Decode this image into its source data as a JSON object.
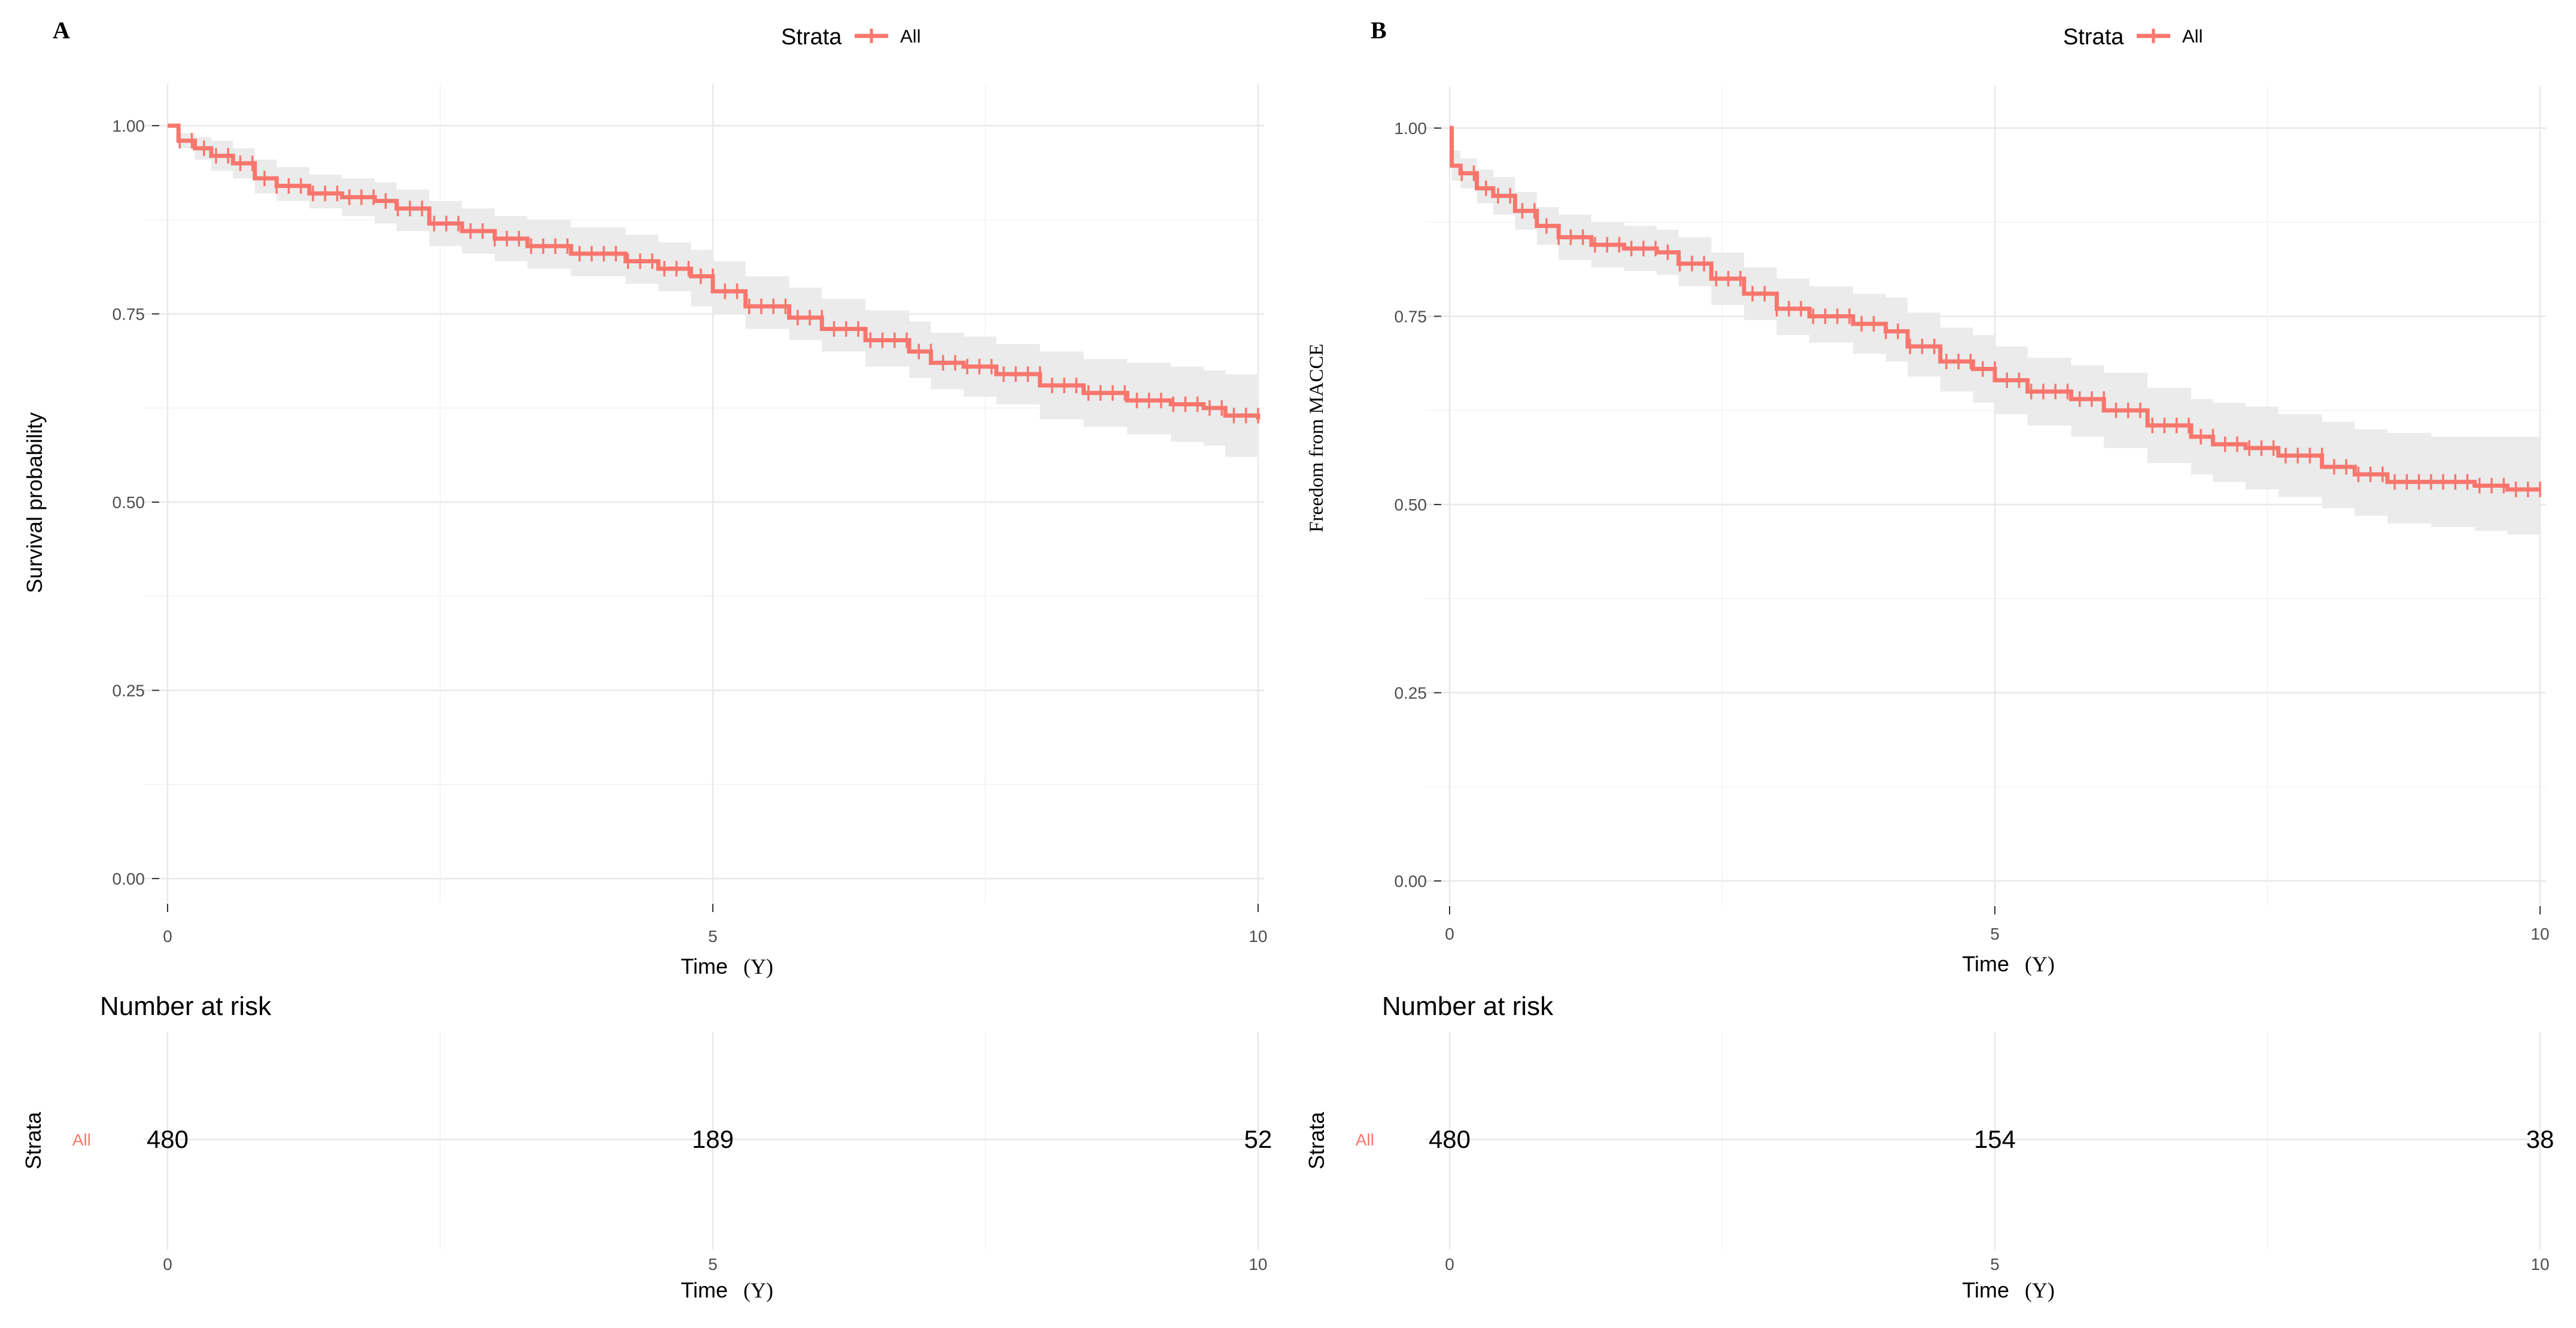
{
  "chart_data": [
    {
      "panel": "A",
      "type": "line",
      "subtype": "kaplan-meier",
      "legend": {
        "title": "Strata",
        "entries": [
          "All"
        ],
        "position": "top"
      },
      "xlabel": "Time",
      "xunit": "(Y)",
      "ylabel": "Survival probability",
      "xlim": [
        0,
        10
      ],
      "ylim": [
        0,
        1
      ],
      "xticks": [
        0,
        5,
        10
      ],
      "yticks": [
        0.0,
        0.25,
        0.5,
        0.75,
        1.0
      ],
      "ytick_labels": [
        "0.00",
        "0.25",
        "0.50",
        "0.75",
        "1.00"
      ],
      "color": "#F8766D",
      "series": [
        {
          "name": "All",
          "x": [
            0,
            0.1,
            0.25,
            0.4,
            0.6,
            0.8,
            1.0,
            1.3,
            1.6,
            1.9,
            2.1,
            2.4,
            2.7,
            3.0,
            3.3,
            3.7,
            4.0,
            4.2,
            4.5,
            4.8,
            5.0,
            5.3,
            5.7,
            6.0,
            6.4,
            6.8,
            7.0,
            7.3,
            7.6,
            8.0,
            8.4,
            8.8,
            9.2,
            9.5,
            9.7,
            10.0
          ],
          "survival": [
            1.0,
            0.98,
            0.97,
            0.96,
            0.95,
            0.93,
            0.92,
            0.91,
            0.905,
            0.9,
            0.89,
            0.87,
            0.86,
            0.85,
            0.84,
            0.83,
            0.83,
            0.82,
            0.81,
            0.8,
            0.78,
            0.76,
            0.745,
            0.73,
            0.715,
            0.7,
            0.685,
            0.68,
            0.67,
            0.655,
            0.645,
            0.635,
            0.63,
            0.625,
            0.615,
            0.61
          ],
          "lower": [
            1.0,
            0.97,
            0.955,
            0.94,
            0.93,
            0.91,
            0.9,
            0.89,
            0.88,
            0.87,
            0.86,
            0.84,
            0.83,
            0.82,
            0.81,
            0.8,
            0.8,
            0.79,
            0.78,
            0.76,
            0.75,
            0.73,
            0.715,
            0.7,
            0.68,
            0.665,
            0.65,
            0.64,
            0.63,
            0.61,
            0.6,
            0.59,
            0.58,
            0.575,
            0.56,
            0.55
          ],
          "upper": [
            1.0,
            0.99,
            0.985,
            0.98,
            0.97,
            0.955,
            0.945,
            0.935,
            0.93,
            0.925,
            0.915,
            0.9,
            0.89,
            0.88,
            0.875,
            0.865,
            0.865,
            0.855,
            0.845,
            0.835,
            0.82,
            0.8,
            0.785,
            0.77,
            0.755,
            0.74,
            0.725,
            0.72,
            0.71,
            0.7,
            0.69,
            0.685,
            0.68,
            0.675,
            0.67,
            0.67
          ]
        }
      ],
      "risk_table": {
        "title": "Number at risk",
        "ylabel": "Strata",
        "row_label": "All",
        "times": [
          0,
          5,
          10
        ],
        "counts": [
          480,
          189,
          52
        ],
        "xlabel": "Time",
        "xunit": "(Y)"
      }
    },
    {
      "panel": "B",
      "type": "line",
      "subtype": "kaplan-meier",
      "legend": {
        "title": "Strata",
        "entries": [
          "All"
        ],
        "position": "top"
      },
      "xlabel": "Time",
      "xunit": "(Y)",
      "ylabel": "Freedom from MACCE",
      "xlim": [
        0,
        10
      ],
      "ylim": [
        0,
        1
      ],
      "xticks": [
        0,
        5,
        10
      ],
      "yticks": [
        0.0,
        0.25,
        0.5,
        0.75,
        1.0
      ],
      "ytick_labels": [
        "0.00",
        "0.25",
        "0.50",
        "0.75",
        "1.00"
      ],
      "color": "#F8766D",
      "series": [
        {
          "name": "All",
          "x": [
            0,
            0.02,
            0.1,
            0.25,
            0.4,
            0.6,
            0.8,
            1.0,
            1.3,
            1.6,
            1.9,
            2.1,
            2.4,
            2.7,
            3.0,
            3.3,
            3.7,
            4.0,
            4.2,
            4.5,
            4.8,
            5.0,
            5.3,
            5.7,
            6.0,
            6.4,
            6.8,
            7.0,
            7.3,
            7.6,
            8.0,
            8.3,
            8.6,
            9.0,
            9.4,
            9.7,
            10.0
          ],
          "survival": [
            1.0,
            0.95,
            0.94,
            0.92,
            0.91,
            0.89,
            0.87,
            0.855,
            0.845,
            0.84,
            0.835,
            0.82,
            0.8,
            0.78,
            0.76,
            0.75,
            0.74,
            0.73,
            0.71,
            0.69,
            0.68,
            0.665,
            0.65,
            0.64,
            0.625,
            0.605,
            0.59,
            0.58,
            0.575,
            0.565,
            0.55,
            0.54,
            0.53,
            0.53,
            0.525,
            0.52,
            0.52
          ],
          "lower": [
            1.0,
            0.93,
            0.92,
            0.9,
            0.885,
            0.865,
            0.845,
            0.825,
            0.815,
            0.81,
            0.805,
            0.79,
            0.765,
            0.745,
            0.725,
            0.715,
            0.7,
            0.69,
            0.67,
            0.65,
            0.635,
            0.62,
            0.605,
            0.59,
            0.575,
            0.555,
            0.54,
            0.53,
            0.52,
            0.51,
            0.495,
            0.485,
            0.475,
            0.47,
            0.465,
            0.46,
            0.455
          ],
          "upper": [
            1.0,
            0.97,
            0.96,
            0.945,
            0.935,
            0.915,
            0.895,
            0.885,
            0.875,
            0.87,
            0.865,
            0.855,
            0.835,
            0.815,
            0.8,
            0.79,
            0.78,
            0.775,
            0.755,
            0.735,
            0.725,
            0.71,
            0.695,
            0.685,
            0.675,
            0.655,
            0.64,
            0.635,
            0.63,
            0.62,
            0.61,
            0.6,
            0.595,
            0.59,
            0.59,
            0.59,
            0.585
          ]
        }
      ],
      "risk_table": {
        "title": "Number at risk",
        "ylabel": "Strata",
        "row_label": "All",
        "times": [
          0,
          5,
          10
        ],
        "counts": [
          480,
          154,
          38
        ],
        "xlabel": "Time",
        "xunit": "(Y)"
      }
    }
  ]
}
